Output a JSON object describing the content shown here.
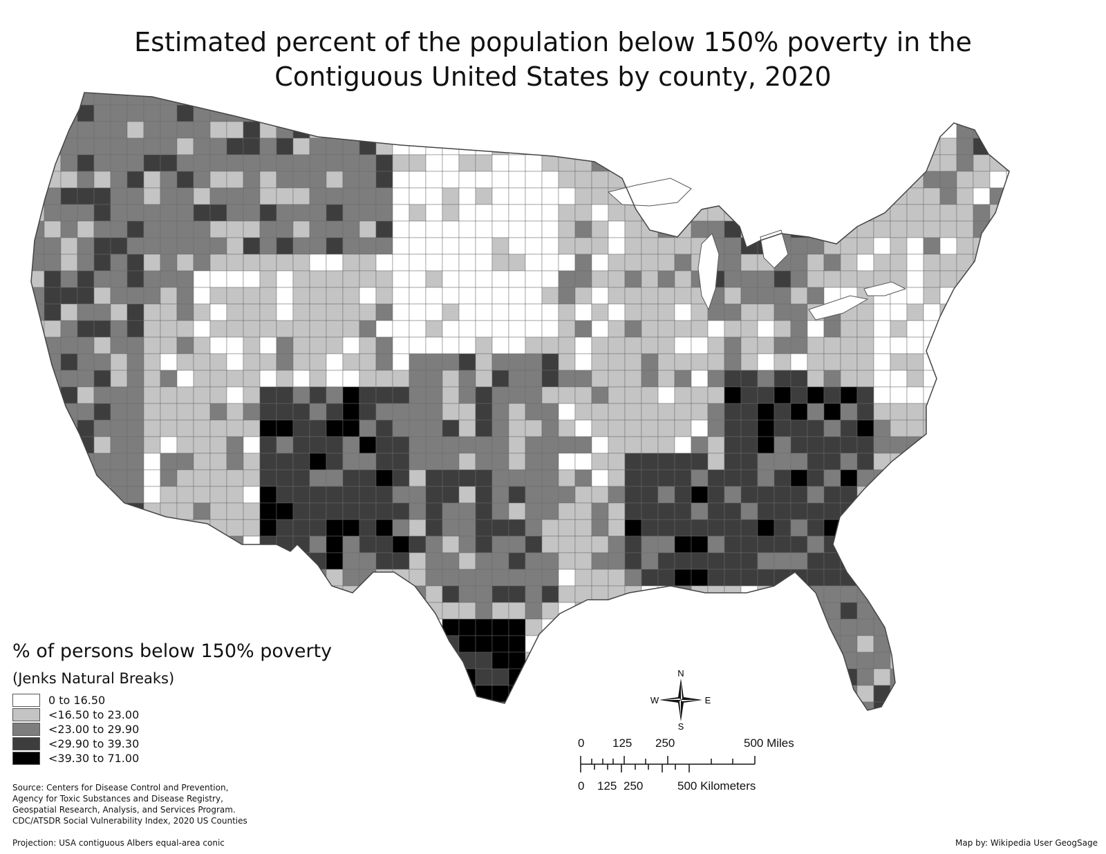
{
  "title": {
    "line1": "Estimated percent of the population below 150% poverty in the",
    "line2": "Contiguous United States by county, 2020"
  },
  "legend": {
    "title": "% of persons below 150% poverty",
    "subtitle": "(Jenks Natural Breaks)",
    "classes": [
      {
        "label": "0 to 16.50",
        "color": "#ffffff"
      },
      {
        "label": "<16.50 to 23.00",
        "color": "#c4c4c4"
      },
      {
        "label": "<23.00 to 29.90",
        "color": "#7d7d7d"
      },
      {
        "label": "<29.90 to 39.30",
        "color": "#3d3d3d"
      },
      {
        "label": "<39.30 to 71.00",
        "color": "#000000"
      }
    ]
  },
  "source": {
    "line1": "Source: Centers for Disease Control and Prevention,",
    "line2": "Agency for Toxic Substances and Disease Registry,",
    "line3": "Geospatial Research, Analysis, and Services Program.",
    "line4": "CDC/ATSDR Social Vulnerability Index, 2020 US Counties"
  },
  "projection": "Projection: USA contiguous Albers equal-area conic",
  "credit": "Map by: Wikipedia User GeogSage",
  "compass": {
    "n": "N",
    "s": "S",
    "e": "E",
    "w": "W"
  },
  "scale": {
    "miles_labels": [
      "0",
      "125",
      "250",
      "500 Miles"
    ],
    "km_labels": [
      "0",
      "125",
      "250",
      "500 Kilometers"
    ]
  },
  "map": {
    "regions": [
      {
        "name": "pacific-northwest",
        "class": 2
      },
      {
        "name": "california",
        "class": 2
      },
      {
        "name": "great-basin",
        "class": 1
      },
      {
        "name": "northern-rockies",
        "class": 2
      },
      {
        "name": "southwest-four-corners",
        "class": 3
      },
      {
        "name": "northern-plains",
        "class": 0
      },
      {
        "name": "southern-plains",
        "class": 2
      },
      {
        "name": "upper-midwest",
        "class": 1
      },
      {
        "name": "great-lakes-michigan",
        "class": 2
      },
      {
        "name": "ohio-valley",
        "class": 1
      },
      {
        "name": "appalachia",
        "class": 3
      },
      {
        "name": "mississippi-delta",
        "class": 3
      },
      {
        "name": "deep-south",
        "class": 3
      },
      {
        "name": "texas-gulf",
        "class": 2
      },
      {
        "name": "south-texas-border",
        "class": 4
      },
      {
        "name": "florida",
        "class": 2
      },
      {
        "name": "mid-atlantic",
        "class": 0
      },
      {
        "name": "new-england",
        "class": 1
      },
      {
        "name": "maine",
        "class": 2
      }
    ]
  }
}
